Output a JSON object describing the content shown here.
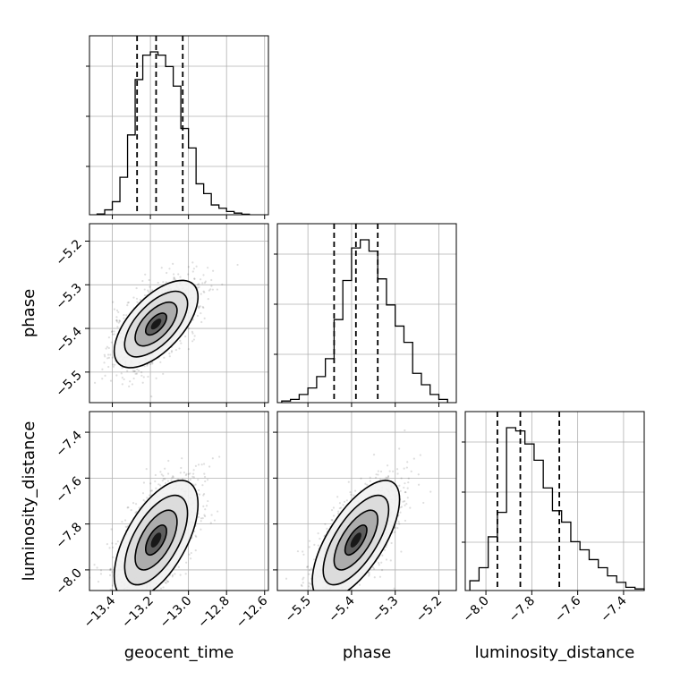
{
  "chart_data": {
    "type": "corner",
    "parameters": [
      "geocent_time",
      "phase",
      "luminosity_distance"
    ],
    "axis_labels": {
      "geocent_time": "geocent_time",
      "phase": "phase",
      "luminosity_distance": "luminosity_distance"
    },
    "axes": {
      "geocent_time": {
        "range": [
          -13.52,
          -12.58
        ],
        "ticks": [
          -13.4,
          -13.2,
          -13.0,
          -12.8,
          -12.6
        ],
        "tick_labels": [
          "−13.4",
          "−13.2",
          "−13.0",
          "−12.8",
          "−12.6"
        ]
      },
      "phase": {
        "range": [
          -5.57,
          -5.16
        ],
        "ticks": [
          -5.5,
          -5.4,
          -5.3,
          -5.2
        ],
        "tick_labels": [
          "−5.5",
          "−5.4",
          "−5.3",
          "−5.2"
        ]
      },
      "luminosity_distance": {
        "range": [
          -8.09,
          -7.31
        ],
        "ticks": [
          -8.0,
          -7.8,
          -7.6,
          -7.4
        ],
        "tick_labels": [
          "−8.0",
          "−7.8",
          "−7.6",
          "−7.4"
        ]
      }
    },
    "histograms": {
      "geocent_time": {
        "bin_edges": [
          -13.48,
          -13.44,
          -13.4,
          -13.36,
          -13.32,
          -13.28,
          -13.24,
          -13.2,
          -13.16,
          -13.12,
          -13.08,
          -13.04,
          -13.0,
          -12.96,
          -12.92,
          -12.88,
          -12.84,
          -12.8,
          -12.76,
          -12.72,
          -12.68
        ],
        "counts": [
          0.005,
          0.03,
          0.08,
          0.23,
          0.49,
          0.83,
          0.98,
          1.0,
          0.98,
          0.91,
          0.79,
          0.53,
          0.41,
          0.19,
          0.13,
          0.06,
          0.04,
          0.02,
          0.01,
          0.003
        ],
        "quantiles": [
          -13.27,
          -13.17,
          -13.03
        ]
      },
      "phase": {
        "bin_edges": [
          -5.56,
          -5.54,
          -5.52,
          -5.5,
          -5.48,
          -5.46,
          -5.44,
          -5.42,
          -5.4,
          -5.38,
          -5.36,
          -5.34,
          -5.32,
          -5.3,
          -5.28,
          -5.26,
          -5.24,
          -5.22,
          -5.2,
          -5.18
        ],
        "counts": [
          0.01,
          0.02,
          0.05,
          0.09,
          0.16,
          0.27,
          0.51,
          0.75,
          0.95,
          1.0,
          0.93,
          0.76,
          0.6,
          0.47,
          0.37,
          0.18,
          0.11,
          0.05,
          0.02
        ],
        "quantiles": [
          -5.44,
          -5.39,
          -5.34
        ]
      },
      "luminosity_distance": {
        "bin_edges": [
          -8.07,
          -8.03,
          -7.99,
          -7.95,
          -7.91,
          -7.87,
          -7.83,
          -7.79,
          -7.75,
          -7.71,
          -7.67,
          -7.63,
          -7.59,
          -7.55,
          -7.51,
          -7.47,
          -7.43,
          -7.39,
          -7.35,
          -7.31
        ],
        "counts": [
          0.06,
          0.14,
          0.33,
          0.48,
          1.0,
          0.98,
          0.9,
          0.8,
          0.63,
          0.49,
          0.42,
          0.3,
          0.25,
          0.19,
          0.14,
          0.09,
          0.05,
          0.02,
          0.01
        ],
        "quantiles": [
          -7.95,
          -7.85,
          -7.68
        ]
      }
    },
    "correlations": [
      {
        "x": "geocent_time",
        "y": "phase",
        "center": [
          -13.17,
          -5.39
        ],
        "sigma": [
          0.11,
          0.05
        ],
        "rho": 0.62
      },
      {
        "x": "geocent_time",
        "y": "luminosity_distance",
        "center": [
          -13.17,
          -7.87
        ],
        "sigma": [
          0.11,
          0.13
        ],
        "rho": 0.6
      },
      {
        "x": "phase",
        "y": "luminosity_distance",
        "center": [
          -5.39,
          -7.87
        ],
        "sigma": [
          0.05,
          0.13
        ],
        "rho": 0.68
      }
    ],
    "grid": true,
    "contour_levels_sigma": [
      0.5,
      1.0,
      1.5,
      2.0
    ]
  }
}
